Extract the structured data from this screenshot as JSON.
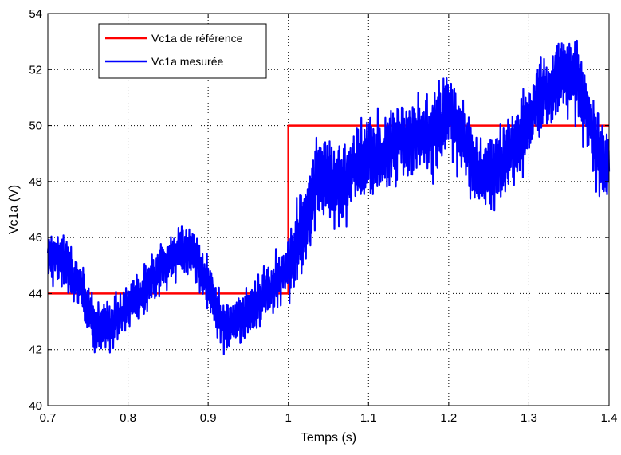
{
  "chart_data": {
    "type": "line",
    "xlabel": "Temps (s)",
    "ylabel": "Vc1a (V)",
    "xlim": [
      0.7,
      1.4
    ],
    "ylim": [
      40,
      54
    ],
    "xticks": [
      "0.7",
      "0.8",
      "0.9",
      "1",
      "1.1",
      "1.2",
      "1.3",
      "1.4"
    ],
    "yticks": [
      "40",
      "42",
      "44",
      "46",
      "48",
      "50",
      "52",
      "54"
    ],
    "grid": true,
    "legend_position": "top-left",
    "series": [
      {
        "name": "Vc1a de référence",
        "color": "#ff0000",
        "style": "step",
        "x": [
          0.7,
          1.0,
          1.0,
          1.4
        ],
        "y": [
          44,
          44,
          50,
          50
        ]
      },
      {
        "name": "Vc1a mesurée",
        "color": "#0000ff",
        "style": "noisy",
        "x": [
          0.7,
          0.72,
          0.74,
          0.76,
          0.78,
          0.8,
          0.82,
          0.84,
          0.86,
          0.88,
          0.9,
          0.92,
          0.94,
          0.96,
          0.98,
          1.0,
          1.02,
          1.04,
          1.06,
          1.08,
          1.1,
          1.12,
          1.14,
          1.16,
          1.18,
          1.2,
          1.22,
          1.24,
          1.26,
          1.28,
          1.3,
          1.32,
          1.34,
          1.36,
          1.38,
          1.4
        ],
        "y": [
          45.4,
          45.2,
          44.2,
          42.8,
          42.9,
          43.6,
          44.1,
          44.9,
          45.5,
          45.6,
          44.3,
          42.7,
          43.2,
          43.6,
          44.3,
          45.0,
          46.5,
          48.5,
          47.8,
          48.3,
          48.9,
          49.0,
          49.6,
          49.7,
          49.7,
          50.4,
          49.3,
          48.2,
          48.5,
          49.0,
          50.2,
          51.2,
          51.8,
          51.6,
          49.6,
          48.3
        ],
        "noise_amplitude": 0.9,
        "noise_amplitude_after_step": 1.4
      }
    ]
  }
}
